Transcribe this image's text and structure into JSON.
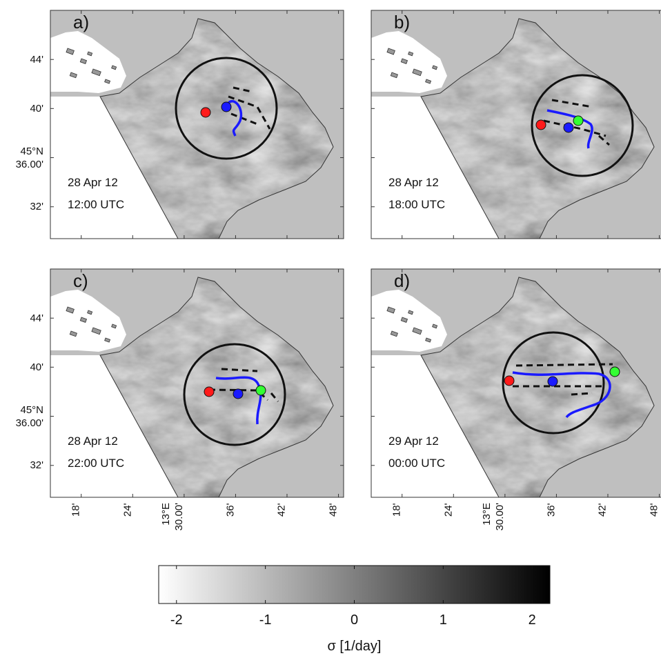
{
  "panels": [
    {
      "label": "a)",
      "date": "28 Apr 12",
      "time": "12:00 UTC"
    },
    {
      "label": "b)",
      "date": "28 Apr 12",
      "time": "18:00 UTC"
    },
    {
      "label": "c)",
      "date": "28 Apr 12",
      "time": "22:00 UTC"
    },
    {
      "label": "d)",
      "date": "29 Apr 12",
      "time": "00:00 UTC"
    }
  ],
  "map_axes": {
    "xlim": [
      13.24,
      13.81
    ],
    "ylim": [
      45.49,
      45.8
    ],
    "xticks": [
      {
        "value": 13.3,
        "label": "18'"
      },
      {
        "value": 13.4,
        "label": "24'"
      },
      {
        "value": 13.5,
        "label": "13°E 30.00'"
      },
      {
        "value": 13.6,
        "label": "36'"
      },
      {
        "value": 13.7,
        "label": "42'"
      },
      {
        "value": 13.8,
        "label": "48'"
      }
    ],
    "yticks": [
      {
        "value": 45.7333,
        "label": "44'"
      },
      {
        "value": 45.6667,
        "label": "40'"
      },
      {
        "value": 45.6,
        "label": "45°N 36.00'"
      },
      {
        "value": 45.5333,
        "label": "32'"
      }
    ]
  },
  "colorbar": {
    "lim": [
      -2.2,
      2.2
    ],
    "ticks": [
      -2,
      -1,
      0,
      1,
      2
    ],
    "label": "σ [1/day]"
  }
}
